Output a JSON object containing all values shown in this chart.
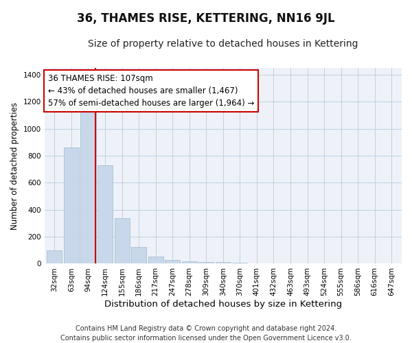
{
  "title": "36, THAMES RISE, KETTERING, NN16 9JL",
  "subtitle": "Size of property relative to detached houses in Kettering",
  "xlabel": "Distribution of detached houses by size in Kettering",
  "ylabel": "Number of detached properties",
  "footer_line1": "Contains HM Land Registry data © Crown copyright and database right 2024.",
  "footer_line2": "Contains public sector information licensed under the Open Government Licence v3.0.",
  "annotation_line1": "36 THAMES RISE: 107sqm",
  "annotation_line2": "← 43% of detached houses are smaller (1,467)",
  "annotation_line3": "57% of semi-detached houses are larger (1,964) →",
  "bar_color": "#c8d8ea",
  "bar_edge_color": "#a0b8cc",
  "grid_color": "#c0cfe0",
  "red_line_color": "#cc0000",
  "annotation_box_facecolor": "#ffffff",
  "annotation_box_edgecolor": "#cc0000",
  "background_color": "#eef2f8",
  "categories": [
    "32sqm",
    "63sqm",
    "94sqm",
    "124sqm",
    "155sqm",
    "186sqm",
    "217sqm",
    "247sqm",
    "278sqm",
    "309sqm",
    "340sqm",
    "370sqm",
    "401sqm",
    "432sqm",
    "463sqm",
    "493sqm",
    "524sqm",
    "555sqm",
    "586sqm",
    "616sqm",
    "647sqm"
  ],
  "values": [
    100,
    860,
    1150,
    730,
    340,
    125,
    55,
    30,
    20,
    15,
    12,
    8,
    0,
    0,
    0,
    0,
    0,
    0,
    0,
    0,
    0
  ],
  "red_line_x": 2.43,
  "ylim": [
    0,
    1450
  ],
  "yticks": [
    0,
    200,
    400,
    600,
    800,
    1000,
    1200,
    1400
  ],
  "title_fontsize": 12,
  "subtitle_fontsize": 10,
  "xlabel_fontsize": 9.5,
  "ylabel_fontsize": 8.5,
  "tick_fontsize": 7.5,
  "annotation_fontsize": 8.5,
  "footer_fontsize": 7
}
